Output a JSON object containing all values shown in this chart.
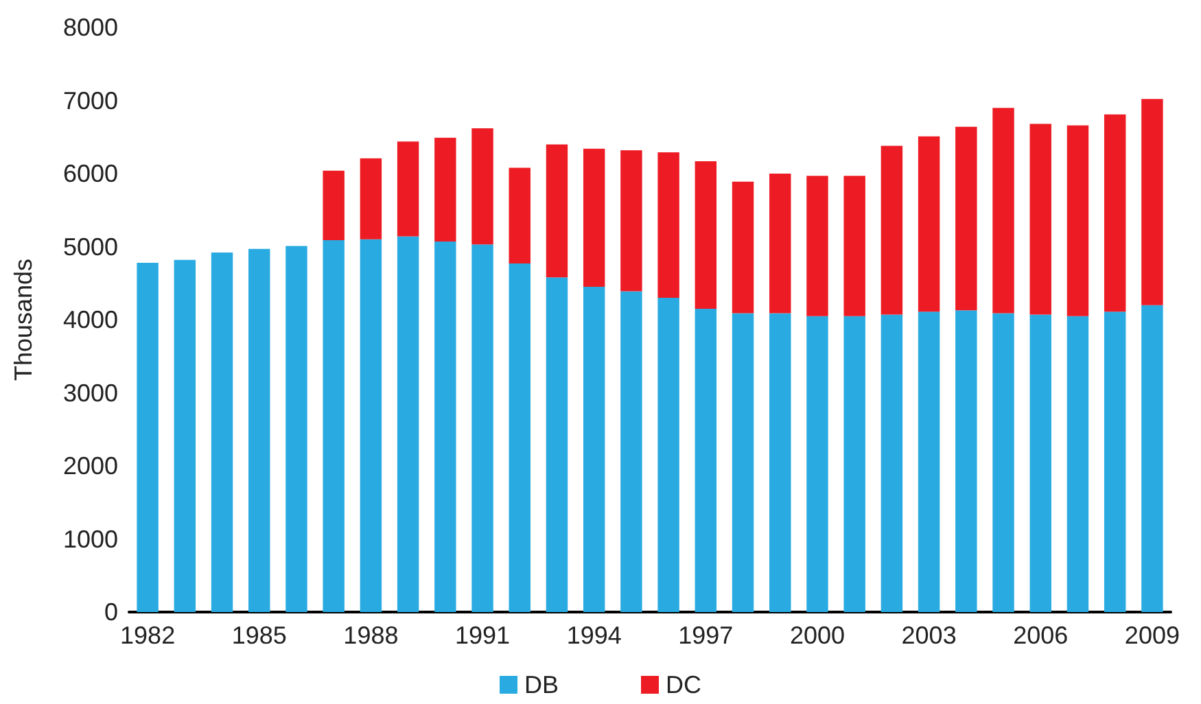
{
  "chart_data": {
    "type": "bar",
    "ylabel": "Thousands",
    "stacked": true,
    "legend": "bottom",
    "grid": false,
    "categories": [
      "1982",
      null,
      null,
      "1985",
      null,
      null,
      "1988",
      null,
      null,
      "1991",
      null,
      null,
      "1994",
      null,
      null,
      "1997",
      null,
      null,
      "2000",
      null,
      null,
      "2003",
      null,
      null,
      "2006",
      null,
      null,
      "2009"
    ],
    "ylim": [
      0,
      8000
    ],
    "yticks": [
      0,
      1000,
      2000,
      3000,
      4000,
      5000,
      6000,
      7000,
      8000
    ],
    "series": [
      {
        "name": "DB",
        "color": "#29abe2",
        "values": [
          4780,
          4820,
          4920,
          4970,
          5010,
          5090,
          5100,
          5140,
          5070,
          5030,
          4770,
          4580,
          4450,
          4390,
          4300,
          4150,
          4090,
          4090,
          4050,
          4050,
          4070,
          4110,
          4130,
          4090,
          4070,
          4050,
          4110,
          4200
        ]
      },
      {
        "name": "DC",
        "color": "#ed1c24",
        "values": [
          null,
          null,
          null,
          null,
          null,
          950,
          1110,
          1300,
          1420,
          1590,
          1310,
          1820,
          1890,
          1930,
          1990,
          2020,
          1800,
          1910,
          1920,
          1920,
          2310,
          2400,
          2510,
          2810,
          2610,
          2610,
          2700,
          2820
        ]
      }
    ]
  }
}
